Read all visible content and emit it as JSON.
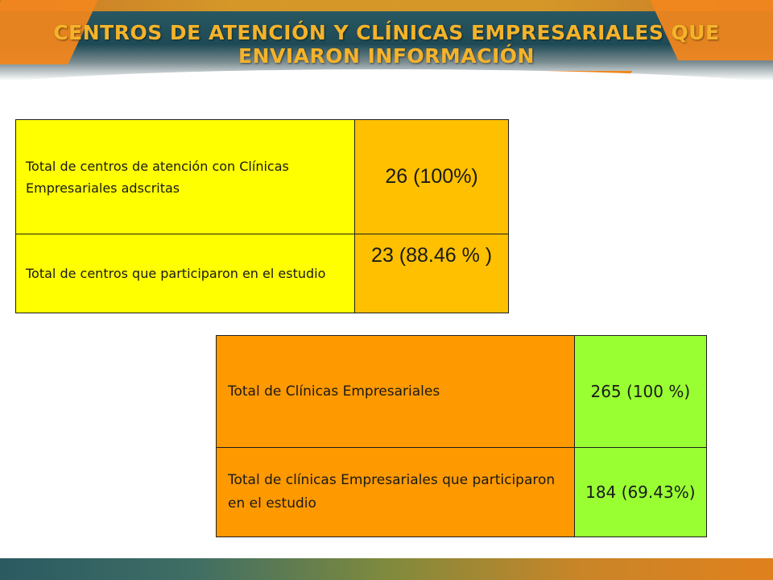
{
  "slide": {
    "title": "CENTROS DE ATENCIÓN Y CLÍNICAS EMPRESARIALES QUE ENVIARON INFORMACIÓN"
  },
  "table_centros": {
    "rows": [
      {
        "label": "Total de centros de atención con Clínicas Empresariales adscritas",
        "value": "26 (100%)"
      },
      {
        "label": "Total de centros que participaron en el estudio",
        "value": "23 (88.46 % )"
      }
    ]
  },
  "table_clinicas": {
    "rows": [
      {
        "label": "Total de Clínicas Empresariales",
        "value": "265 (100 %)"
      },
      {
        "label": "Total de clínicas Empresariales que participaron en el estudio",
        "value": "184 (69.43%)"
      }
    ]
  },
  "colors": {
    "title": "#f5b32a",
    "header_teal": "#1e4a55",
    "accent_orange": "#f0861e",
    "yellow_cell": "#ffff00",
    "gold_cell": "#ffc000",
    "orange_cell": "#ff9900",
    "green_cell": "#99ff33"
  }
}
